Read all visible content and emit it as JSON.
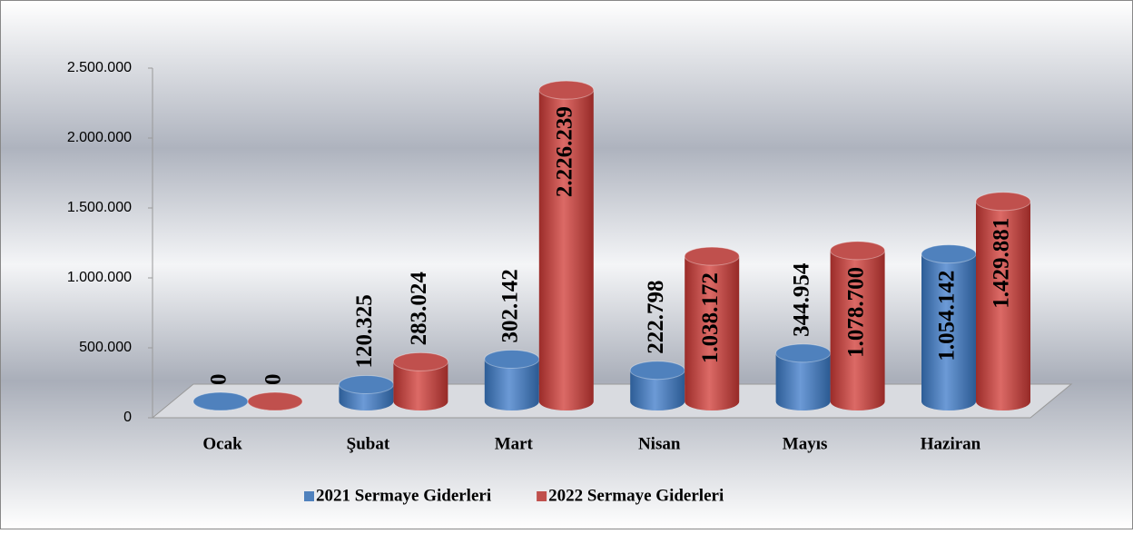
{
  "chart_data": {
    "type": "bar3d",
    "categories": [
      "Ocak",
      "Şubat",
      "Mart",
      "Nisan",
      "Mayıs",
      "Haziran"
    ],
    "series": [
      {
        "name": "2021 Sermaye Giderleri",
        "color": "#4f81bd",
        "values": [
          0,
          120325,
          302142,
          222798,
          344954,
          1054142
        ],
        "value_labels": [
          "0",
          "120.325",
          "302.142",
          "222.798",
          "344.954",
          "1.054.142"
        ]
      },
      {
        "name": "2022 Sermaye Giderleri",
        "color": "#c0504d",
        "values": [
          0,
          283024,
          2226239,
          1038172,
          1078700,
          1429881
        ],
        "value_labels": [
          "0",
          "283.024",
          "2.226.239",
          "1.038.172",
          "1.078.700",
          "1.429.881"
        ]
      }
    ],
    "ylim": [
      0,
      2500000
    ],
    "yticks": [
      0,
      {
        "value": 500000,
        "label": "500.000"
      },
      {
        "value": 1000000,
        "label": "1.000.000"
      },
      {
        "value": 1500000,
        "label": "1.500.000"
      },
      {
        "value": 2000000,
        "label": "2.000.000"
      },
      {
        "value": 2500000,
        "label": "2.500.000"
      }
    ],
    "legend": "bottom"
  }
}
